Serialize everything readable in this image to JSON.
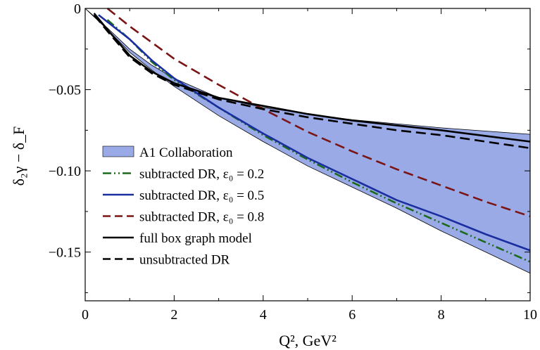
{
  "chart_data": {
    "type": "line",
    "title": "",
    "xlabel": "Q², GeV²",
    "ylabel": "δ₂γ − δ_F",
    "xlim": [
      0,
      10
    ],
    "ylim": [
      -0.18,
      0
    ],
    "x_ticks": [
      {
        "value": 0,
        "label": "0"
      },
      {
        "value": 2,
        "label": "2"
      },
      {
        "value": 4,
        "label": "4"
      },
      {
        "value": 6,
        "label": "6"
      },
      {
        "value": 8,
        "label": "8"
      },
      {
        "value": 10,
        "label": "10"
      }
    ],
    "y_ticks": [
      {
        "value": 0,
        "label": "0"
      },
      {
        "value": -0.05,
        "label": "−0.05"
      },
      {
        "value": -0.1,
        "label": "−0.10"
      },
      {
        "value": -0.15,
        "label": "−0.15"
      }
    ],
    "grid": false,
    "legend_position": "bottom-left",
    "band": {
      "name": "A1 Collaboration",
      "color": "#9aaae6",
      "x": [
        0,
        0.5,
        1,
        1.5,
        2,
        3,
        4,
        5,
        6,
        7,
        8,
        9,
        10
      ],
      "upper": [
        0,
        -0.012,
        -0.025,
        -0.035,
        -0.043,
        -0.055,
        -0.061,
        -0.065,
        -0.0685,
        -0.071,
        -0.0735,
        -0.0755,
        -0.0775
      ],
      "lower": [
        0,
        -0.013,
        -0.027,
        -0.038,
        -0.048,
        -0.066,
        -0.082,
        -0.097,
        -0.11,
        -0.123,
        -0.137,
        -0.15,
        -0.163
      ]
    },
    "series": [
      {
        "name": "subtracted DR, ε₀ = 0.2",
        "color": "#1c6b1c",
        "dash": "dashdotdot",
        "x": [
          0.5,
          1,
          1.5,
          2,
          3,
          4,
          5,
          6,
          7,
          8,
          9,
          10
        ],
        "y": [
          -0.007,
          -0.019,
          -0.033,
          -0.044,
          -0.061,
          -0.078,
          -0.093,
          -0.107,
          -0.12,
          -0.132,
          -0.144,
          -0.156
        ]
      },
      {
        "name": "subtracted DR, ε₀ = 0.5",
        "color": "#1a2ea0",
        "dash": "solid",
        "x": [
          0.3,
          1,
          1.5,
          2,
          3,
          4,
          5,
          6,
          7,
          8,
          9,
          10
        ],
        "y": [
          -0.004,
          -0.019,
          -0.032,
          -0.043,
          -0.061,
          -0.077,
          -0.092,
          -0.105,
          -0.118,
          -0.128,
          -0.139,
          -0.149
        ]
      },
      {
        "name": "subtracted DR, ε₀ = 0.8",
        "color": "#7a1515",
        "dash": "dashed",
        "x": [
          0.5,
          1,
          1.5,
          2,
          3,
          4,
          5,
          6,
          7,
          8,
          9,
          10
        ],
        "y": [
          0,
          -0.011,
          -0.021,
          -0.031,
          -0.047,
          -0.062,
          -0.076,
          -0.088,
          -0.099,
          -0.109,
          -0.119,
          -0.128
        ]
      },
      {
        "name": "full box graph model",
        "color": "#000000",
        "dash": "solid",
        "x": [
          0.2,
          0.5,
          1,
          1.5,
          2,
          3,
          4,
          5,
          6,
          7,
          8,
          9,
          10
        ],
        "y": [
          -0.003,
          -0.013,
          -0.029,
          -0.039,
          -0.046,
          -0.055,
          -0.06,
          -0.065,
          -0.069,
          -0.072,
          -0.075,
          -0.0785,
          -0.082
        ]
      },
      {
        "name": "unsubtracted DR",
        "color": "#000000",
        "dash": "dashed",
        "x": [
          0.2,
          0.5,
          1,
          1.5,
          2,
          3,
          4,
          5,
          6,
          7,
          8,
          9,
          10
        ],
        "y": [
          -0.004,
          -0.014,
          -0.03,
          -0.04,
          -0.047,
          -0.056,
          -0.062,
          -0.067,
          -0.071,
          -0.075,
          -0.078,
          -0.082,
          -0.086
        ]
      }
    ]
  }
}
